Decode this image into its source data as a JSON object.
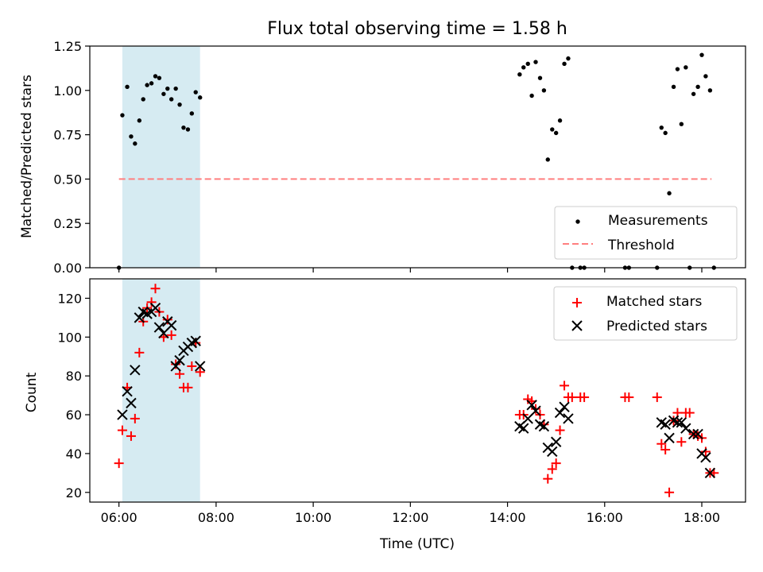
{
  "chart_data": {
    "type": "scatter",
    "title": "Flux total observing time = 1.58 h",
    "xlabel": "Time (UTC)",
    "x_tick_labels": [
      "06:00",
      "08:00",
      "10:00",
      "12:00",
      "14:00",
      "16:00",
      "18:00"
    ],
    "x_ticks_hours": [
      6,
      8,
      10,
      12,
      14,
      16,
      18
    ],
    "xlim_hours": [
      5.4,
      18.9
    ],
    "shaded_region_hours": [
      6.07,
      7.67
    ],
    "shaded_color": "#add8e6",
    "panels": [
      {
        "ylabel": "Matched/Predicted stars",
        "ylim": [
          0,
          1.25
        ],
        "y_ticks": [
          0.0,
          0.25,
          0.5,
          0.75,
          1.0,
          1.25
        ],
        "y_tick_labels": [
          "0.00",
          "0.25",
          "0.50",
          "0.75",
          "1.00",
          "1.25"
        ],
        "legend_position": "lower-right",
        "threshold": {
          "name": "Threshold",
          "value": 0.5,
          "x_range_hours": [
            6.0,
            18.2
          ],
          "color": "#ff7f7f"
        },
        "series": [
          {
            "name": "Measurements",
            "marker": "dot",
            "color": "#000000",
            "points": [
              [
                6.0,
                0.0
              ],
              [
                6.07,
                0.86
              ],
              [
                6.17,
                1.02
              ],
              [
                6.25,
                0.74
              ],
              [
                6.33,
                0.7
              ],
              [
                6.42,
                0.83
              ],
              [
                6.5,
                0.95
              ],
              [
                6.58,
                1.03
              ],
              [
                6.67,
                1.04
              ],
              [
                6.75,
                1.08
              ],
              [
                6.83,
                1.07
              ],
              [
                6.92,
                0.98
              ],
              [
                7.0,
                1.01
              ],
              [
                7.08,
                0.95
              ],
              [
                7.17,
                1.01
              ],
              [
                7.25,
                0.92
              ],
              [
                7.33,
                0.79
              ],
              [
                7.42,
                0.78
              ],
              [
                7.5,
                0.87
              ],
              [
                7.58,
                0.99
              ],
              [
                7.67,
                0.96
              ],
              [
                14.25,
                1.09
              ],
              [
                14.33,
                1.13
              ],
              [
                14.42,
                1.15
              ],
              [
                14.5,
                0.97
              ],
              [
                14.58,
                1.16
              ],
              [
                14.67,
                1.07
              ],
              [
                14.75,
                1.0
              ],
              [
                14.83,
                0.61
              ],
              [
                14.92,
                0.78
              ],
              [
                15.0,
                0.76
              ],
              [
                15.08,
                0.83
              ],
              [
                15.17,
                1.15
              ],
              [
                15.25,
                1.18
              ],
              [
                15.33,
                0.0
              ],
              [
                15.5,
                0.0
              ],
              [
                15.58,
                0.0
              ],
              [
                16.42,
                0.0
              ],
              [
                16.5,
                0.0
              ],
              [
                17.08,
                0.0
              ],
              [
                17.17,
                0.79
              ],
              [
                17.25,
                0.76
              ],
              [
                17.33,
                0.42
              ],
              [
                17.42,
                1.02
              ],
              [
                17.5,
                1.12
              ],
              [
                17.58,
                0.81
              ],
              [
                17.67,
                1.13
              ],
              [
                17.83,
                0.98
              ],
              [
                17.92,
                1.02
              ],
              [
                18.0,
                1.2
              ],
              [
                18.08,
                1.08
              ],
              [
                18.17,
                1.0
              ],
              [
                17.75,
                0.0
              ],
              [
                18.25,
                0.0
              ]
            ]
          }
        ]
      },
      {
        "ylabel": "Count",
        "ylim": [
          15,
          130
        ],
        "y_ticks": [
          20,
          40,
          60,
          80,
          100,
          120
        ],
        "y_tick_labels": [
          "20",
          "40",
          "60",
          "80",
          "100",
          "120"
        ],
        "legend_position": "upper-right",
        "series": [
          {
            "name": "Matched stars",
            "marker": "plus",
            "color": "#ff0000",
            "points": [
              [
                6.0,
                35
              ],
              [
                6.07,
                52
              ],
              [
                6.17,
                74
              ],
              [
                6.25,
                49
              ],
              [
                6.33,
                58
              ],
              [
                6.42,
                92
              ],
              [
                6.5,
                108
              ],
              [
                6.58,
                115
              ],
              [
                6.67,
                118
              ],
              [
                6.75,
                125
              ],
              [
                6.83,
                113
              ],
              [
                6.92,
                100
              ],
              [
                7.0,
                109
              ],
              [
                7.08,
                101
              ],
              [
                7.17,
                86
              ],
              [
                7.25,
                81
              ],
              [
                7.33,
                74
              ],
              [
                7.42,
                74
              ],
              [
                7.5,
                85
              ],
              [
                7.58,
                97
              ],
              [
                7.67,
                82
              ],
              [
                14.25,
                60
              ],
              [
                14.33,
                60
              ],
              [
                14.42,
                68
              ],
              [
                14.5,
                67
              ],
              [
                14.58,
                63
              ],
              [
                14.67,
                60
              ],
              [
                14.75,
                55
              ],
              [
                14.83,
                27
              ],
              [
                14.92,
                32
              ],
              [
                15.0,
                35
              ],
              [
                15.08,
                52
              ],
              [
                15.17,
                75
              ],
              [
                15.25,
                69
              ],
              [
                15.33,
                69
              ],
              [
                15.5,
                69
              ],
              [
                15.58,
                69
              ],
              [
                16.42,
                69
              ],
              [
                16.5,
                69
              ],
              [
                17.08,
                69
              ],
              [
                17.17,
                45
              ],
              [
                17.25,
                42
              ],
              [
                17.33,
                20
              ],
              [
                17.42,
                57
              ],
              [
                17.5,
                61
              ],
              [
                17.58,
                46
              ],
              [
                17.67,
                61
              ],
              [
                17.75,
                61
              ],
              [
                17.83,
                50
              ],
              [
                17.92,
                49
              ],
              [
                18.0,
                48
              ],
              [
                18.08,
                41
              ],
              [
                18.17,
                30
              ],
              [
                18.25,
                30
              ]
            ]
          },
          {
            "name": "Predicted stars",
            "marker": "x",
            "color": "#000000",
            "points": [
              [
                6.07,
                60
              ],
              [
                6.17,
                72
              ],
              [
                6.25,
                66
              ],
              [
                6.33,
                83
              ],
              [
                6.42,
                110
              ],
              [
                6.5,
                113
              ],
              [
                6.58,
                112
              ],
              [
                6.67,
                113
              ],
              [
                6.75,
                115
              ],
              [
                6.83,
                105
              ],
              [
                6.92,
                102
              ],
              [
                7.0,
                108
              ],
              [
                7.08,
                106
              ],
              [
                7.17,
                85
              ],
              [
                7.25,
                88
              ],
              [
                7.33,
                93
              ],
              [
                7.42,
                95
              ],
              [
                7.5,
                97
              ],
              [
                7.58,
                98
              ],
              [
                7.67,
                85
              ],
              [
                14.25,
                54
              ],
              [
                14.33,
                53
              ],
              [
                14.42,
                58
              ],
              [
                14.5,
                65
              ],
              [
                14.58,
                62
              ],
              [
                14.67,
                55
              ],
              [
                14.75,
                54
              ],
              [
                14.83,
                43
              ],
              [
                14.92,
                41
              ],
              [
                15.0,
                46
              ],
              [
                15.08,
                61
              ],
              [
                15.17,
                64
              ],
              [
                15.25,
                58
              ],
              [
                17.17,
                56
              ],
              [
                17.25,
                55
              ],
              [
                17.33,
                48
              ],
              [
                17.42,
                57
              ],
              [
                17.5,
                56
              ],
              [
                17.58,
                56
              ],
              [
                17.67,
                53
              ],
              [
                17.83,
                50
              ],
              [
                17.92,
                50
              ],
              [
                18.0,
                40
              ],
              [
                18.08,
                38
              ],
              [
                18.17,
                30
              ]
            ]
          }
        ]
      }
    ]
  }
}
